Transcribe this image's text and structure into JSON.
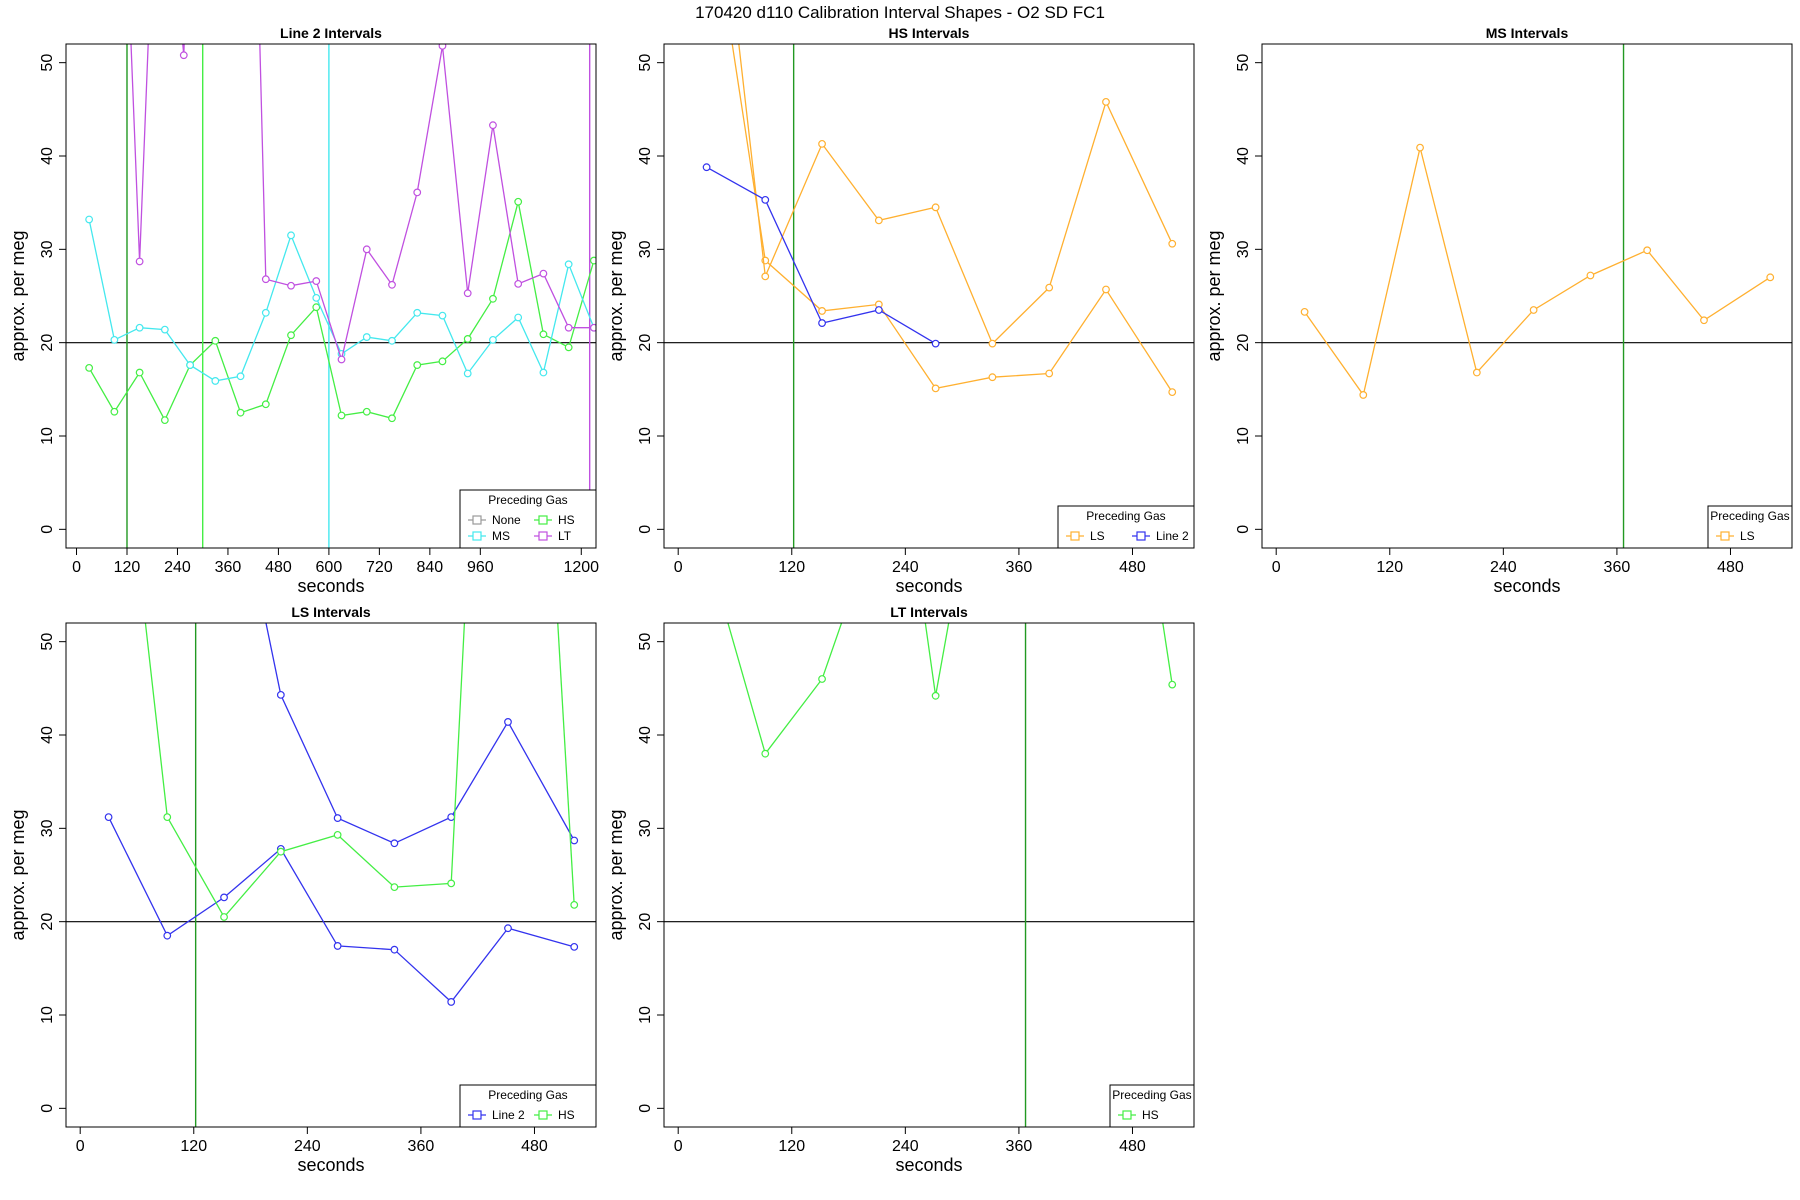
{
  "suptitle": "170420   d110   Calibration Interval Shapes - O2 SD FC1",
  "colors": {
    "None": "#9a9a9a",
    "HS": "#44ee44",
    "MS": "#44e8ee",
    "LT": "#c050e0",
    "LS": "#ffb030",
    "Line 2": "#3333ee",
    "vline_green": "#229922",
    "vline_lime": "#44ee44",
    "vline_cyan": "#44e8ee",
    "vline_purple": "#c050e0",
    "hline": "#000000"
  },
  "chart_data": [
    {
      "type": "line",
      "title": "Line 2 Intervals",
      "xlabel": "seconds",
      "ylabel": "approx. per meg",
      "xlim": [
        -25,
        1235
      ],
      "ylim": [
        -2,
        52
      ],
      "xticks": [
        0,
        120,
        240,
        360,
        480,
        600,
        720,
        840,
        960,
        1200
      ],
      "yticks": [
        0,
        10,
        20,
        30,
        40,
        50
      ],
      "hline": 20,
      "vlines": [
        {
          "x": 120,
          "color": "vline_green"
        },
        {
          "x": 300,
          "color": "vline_lime"
        },
        {
          "x": 600,
          "color": "vline_cyan"
        },
        {
          "x": 1220,
          "color": "vline_purple"
        }
      ],
      "legend": {
        "title": "Preceding Gas",
        "position": "bottom-right",
        "entries": [
          "None",
          "HS",
          "MS",
          "LT"
        ],
        "columns": 2
      },
      "series": [
        {
          "name": "HS",
          "color": "HS",
          "points": [
            [
              30,
              17.3
            ],
            [
              90,
              12.6
            ],
            [
              150,
              16.8
            ],
            [
              210,
              11.7
            ],
            [
              270,
              17.6
            ],
            [
              330,
              20.2
            ],
            [
              390,
              12.5
            ],
            [
              450,
              13.4
            ],
            [
              510,
              20.8
            ],
            [
              570,
              23.8
            ],
            [
              630,
              12.2
            ],
            [
              690,
              12.6
            ],
            [
              750,
              11.9
            ],
            [
              810,
              17.6
            ],
            [
              870,
              18.0
            ],
            [
              930,
              20.4
            ],
            [
              990,
              24.7
            ],
            [
              1050,
              35.1
            ],
            [
              1110,
              20.9
            ],
            [
              1170,
              19.5
            ],
            [
              1230,
              28.8
            ]
          ]
        },
        {
          "name": "MS",
          "color": "MS",
          "points": [
            [
              30,
              33.2
            ],
            [
              90,
              20.3
            ],
            [
              150,
              21.6
            ],
            [
              210,
              21.4
            ],
            [
              270,
              17.6
            ],
            [
              330,
              15.9
            ],
            [
              390,
              16.4
            ],
            [
              450,
              23.2
            ],
            [
              510,
              31.5
            ],
            [
              570,
              24.8
            ],
            [
              630,
              18.8
            ],
            [
              690,
              20.6
            ],
            [
              750,
              20.2
            ],
            [
              810,
              23.2
            ],
            [
              870,
              22.9
            ],
            [
              930,
              16.7
            ],
            [
              990,
              20.3
            ],
            [
              1050,
              22.7
            ],
            [
              1110,
              16.8
            ],
            [
              1170,
              28.4
            ],
            [
              1230,
              21.6
            ]
          ]
        },
        {
          "name": "LT",
          "color": "LT",
          "points": [
            [
              105,
              80
            ],
            [
              150,
              28.7
            ],
            [
              195,
              80
            ],
            [
              255,
              50.8
            ],
            [
              275,
              80
            ],
            [
              420,
              80
            ],
            [
              450,
              26.8
            ],
            [
              510,
              26.1
            ],
            [
              570,
              26.6
            ],
            [
              630,
              18.2
            ],
            [
              690,
              30.0
            ],
            [
              750,
              26.2
            ],
            [
              810,
              36.1
            ],
            [
              870,
              51.8
            ],
            [
              930,
              25.3
            ],
            [
              990,
              43.3
            ],
            [
              1050,
              26.3
            ],
            [
              1110,
              27.4
            ],
            [
              1170,
              21.6
            ],
            [
              1230,
              21.6
            ]
          ]
        }
      ]
    },
    {
      "type": "line",
      "title": "HS Intervals",
      "xlabel": "seconds",
      "ylabel": "approx. per meg",
      "xlim": [
        -15,
        545
      ],
      "ylim": [
        -2,
        52
      ],
      "xticks": [
        0,
        120,
        240,
        360,
        480
      ],
      "yticks": [
        0,
        10,
        20,
        30,
        40,
        50
      ],
      "hline": 20,
      "vlines": [
        {
          "x": 122,
          "color": "vline_green"
        }
      ],
      "legend": {
        "title": "Preceding Gas",
        "position": "bottom-right",
        "entries": [
          "LS",
          "Line 2"
        ],
        "columns": 2
      },
      "series": [
        {
          "name": "LS",
          "color": "LS",
          "points": [
            [
              45,
              60
            ],
            [
              92,
              28.8
            ],
            [
              152,
              23.4
            ],
            [
              212,
              24.1
            ],
            [
              272,
              15.1
            ],
            [
              332,
              16.3
            ],
            [
              392,
              16.7
            ],
            [
              452,
              25.7
            ],
            [
              522,
              14.7
            ]
          ]
        },
        {
          "name": "LS",
          "color": "LS",
          "points": [
            [
              55,
              60
            ],
            [
              92,
              27.1
            ],
            [
              152,
              41.3
            ],
            [
              212,
              33.1
            ],
            [
              272,
              34.5
            ],
            [
              332,
              19.9
            ],
            [
              392,
              25.9
            ],
            [
              452,
              45.8
            ],
            [
              522,
              30.6
            ]
          ]
        },
        {
          "name": "Line 2",
          "color": "Line 2",
          "points": [
            [
              30,
              38.8
            ],
            [
              92,
              35.3
            ],
            [
              152,
              22.1
            ],
            [
              212,
              23.5
            ],
            [
              272,
              19.9
            ]
          ]
        }
      ]
    },
    {
      "type": "line",
      "title": "MS Intervals",
      "xlabel": "seconds",
      "ylabel": "approx. per meg",
      "xlim": [
        -15,
        545
      ],
      "ylim": [
        -2,
        52
      ],
      "xticks": [
        0,
        120,
        240,
        360,
        480
      ],
      "yticks": [
        0,
        10,
        20,
        30,
        40,
        50
      ],
      "hline": 20,
      "vlines": [
        {
          "x": 367,
          "color": "vline_green"
        }
      ],
      "legend": {
        "title": "Preceding Gas",
        "position": "bottom-right",
        "entries": [
          "LS"
        ],
        "columns": 1
      },
      "series": [
        {
          "name": "LS",
          "color": "LS",
          "points": [
            [
              30,
              23.3
            ],
            [
              92,
              14.4
            ],
            [
              152,
              40.9
            ],
            [
              212,
              16.8
            ],
            [
              272,
              23.5
            ],
            [
              332,
              27.2
            ],
            [
              392,
              29.9
            ],
            [
              452,
              22.4
            ],
            [
              522,
              27.0
            ]
          ]
        }
      ]
    },
    {
      "type": "line",
      "title": "LS Intervals",
      "xlabel": "seconds",
      "ylabel": "approx. per meg",
      "xlim": [
        -15,
        545
      ],
      "ylim": [
        -2,
        52
      ],
      "xticks": [
        0,
        120,
        240,
        360,
        480
      ],
      "yticks": [
        0,
        10,
        20,
        30,
        40,
        50
      ],
      "hline": 20,
      "vlines": [
        {
          "x": 122,
          "color": "vline_green"
        }
      ],
      "legend": {
        "title": "Preceding Gas",
        "position": "bottom-right",
        "entries": [
          "Line 2",
          "HS"
        ],
        "columns": 2
      },
      "series": [
        {
          "name": "Line 2",
          "color": "Line 2",
          "points": [
            [
              30,
              31.2
            ],
            [
              92,
              18.5
            ],
            [
              152,
              22.6
            ],
            [
              212,
              27.8
            ],
            [
              272,
              17.4
            ],
            [
              332,
              17.0
            ],
            [
              392,
              11.4
            ],
            [
              452,
              19.3
            ],
            [
              522,
              17.3
            ]
          ]
        },
        {
          "name": "Line 2",
          "color": "Line 2",
          "points": [
            [
              180,
              60
            ],
            [
              212,
              44.3
            ],
            [
              272,
              31.1
            ],
            [
              332,
              28.4
            ],
            [
              392,
              31.2
            ],
            [
              452,
              41.4
            ],
            [
              522,
              28.7
            ]
          ]
        },
        {
          "name": "HS",
          "color": "HS",
          "points": [
            [
              60,
              60
            ],
            [
              92,
              31.2
            ],
            [
              152,
              20.5
            ],
            [
              212,
              27.5
            ],
            [
              272,
              29.3
            ],
            [
              332,
              23.7
            ],
            [
              392,
              24.1
            ],
            [
              410,
              60
            ]
          ]
        },
        {
          "name": "HS",
          "color": "HS",
          "points": [
            [
              500,
              60
            ],
            [
              522,
              21.8
            ]
          ]
        }
      ]
    },
    {
      "type": "line",
      "title": "LT Intervals",
      "xlabel": "seconds",
      "ylabel": "approx. per meg",
      "xlim": [
        -15,
        545
      ],
      "ylim": [
        -2,
        52
      ],
      "xticks": [
        0,
        120,
        240,
        360,
        480
      ],
      "yticks": [
        0,
        10,
        20,
        30,
        40,
        50
      ],
      "hline": 20,
      "vlines": [
        {
          "x": 367,
          "color": "vline_green"
        }
      ],
      "legend": {
        "title": "Preceding Gas",
        "position": "bottom-right",
        "entries": [
          "HS"
        ],
        "columns": 1
      },
      "series": [
        {
          "name": "HS",
          "color": "HS",
          "points": [
            [
              30,
              60
            ],
            [
              92,
              38.0
            ],
            [
              152,
              46.0
            ],
            [
              200,
              60
            ]
          ]
        },
        {
          "name": "HS",
          "color": "HS",
          "points": [
            [
              250,
              60
            ],
            [
              272,
              44.2
            ],
            [
              300,
              60
            ]
          ]
        },
        {
          "name": "HS",
          "color": "HS",
          "points": [
            [
              500,
              60
            ],
            [
              522,
              45.4
            ]
          ]
        }
      ]
    }
  ]
}
